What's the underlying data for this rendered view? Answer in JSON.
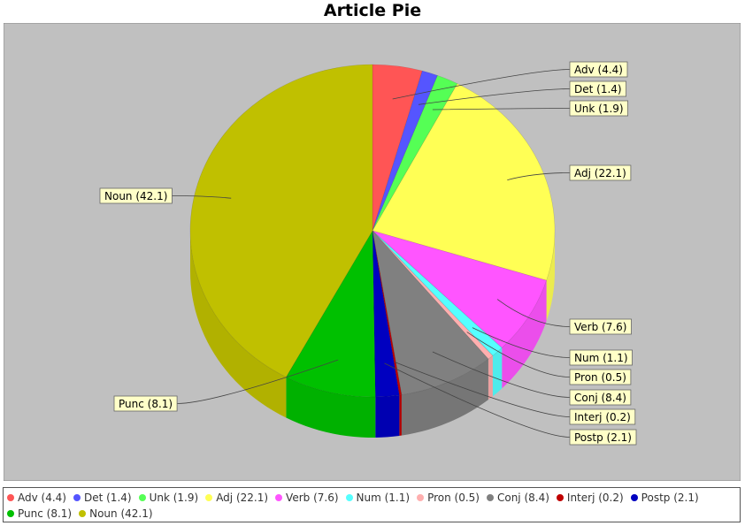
{
  "chart_data": {
    "type": "pie",
    "title": "Article Pie",
    "categories": [
      "Adv",
      "Det",
      "Unk",
      "Adj",
      "Verb",
      "Num",
      "Pron",
      "Conj",
      "Interj",
      "Postp",
      "Punc",
      "Noun"
    ],
    "values": [
      4.4,
      1.4,
      1.9,
      22.1,
      7.6,
      1.1,
      0.5,
      8.4,
      0.2,
      2.1,
      8.1,
      42.1
    ],
    "labels": [
      "Adv (4.4)",
      "Det (1.4)",
      "Unk (1.9)",
      "Adj (22.1)",
      "Verb (7.6)",
      "Num (1.1)",
      "Pron (0.5)",
      "Conj (8.4)",
      "Interj (0.2)",
      "Postp (2.1)",
      "Punc (8.1)",
      "Noun (42.1)"
    ],
    "colors": [
      "#ff5555",
      "#5555ff",
      "#55ff55",
      "#ffff55",
      "#ff55ff",
      "#55ffff",
      "#ffafaf",
      "#808080",
      "#c00000",
      "#0000c0",
      "#00c000",
      "#c0c000"
    ],
    "style": "3d",
    "legend_position": "bottom",
    "plot_background": "#c0c0c0"
  }
}
